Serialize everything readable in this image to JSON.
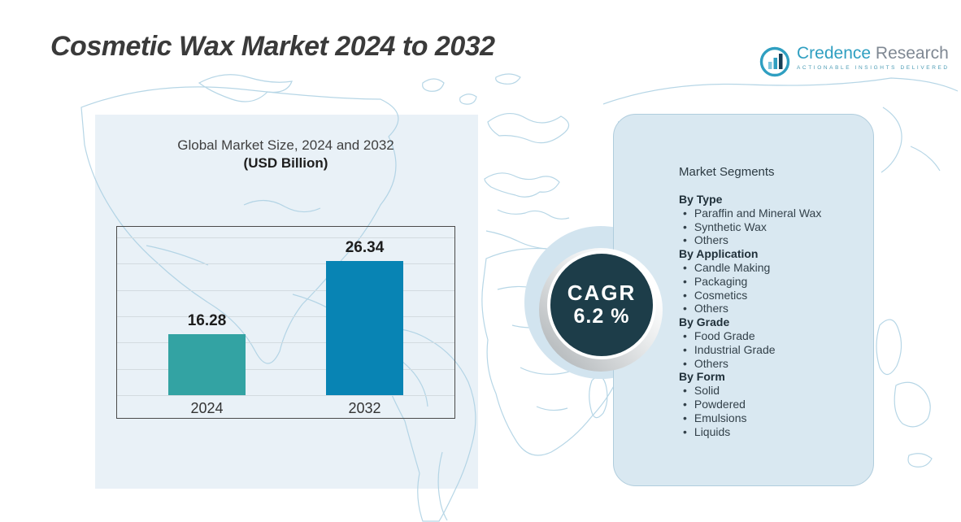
{
  "title": "Cosmetic Wax Market 2024 to 2032",
  "logo": {
    "name_primary": "Credence",
    "name_secondary": "Research",
    "tagline": "Actionable Insights Delivered"
  },
  "chart_heading": {
    "line1": "Global Market Size, 2024 and 2032",
    "line2": "(USD Billion)"
  },
  "chart_data": {
    "type": "bar",
    "categories": [
      "2024",
      "2032"
    ],
    "values": [
      16.28,
      26.34
    ],
    "title": "Global Market Size, 2024 and 2032 (USD Billion)",
    "xlabel": "",
    "ylabel": "USD Billion",
    "ylim": [
      8,
      31
    ],
    "grid": true,
    "gridline_count": 7,
    "legend": false,
    "bar_colors": [
      "#33a3a3",
      "#0884b4"
    ]
  },
  "cagr": {
    "label": "CAGR",
    "value": "6.2 %"
  },
  "segments": {
    "title": "Market Segments",
    "groups": [
      {
        "label": "By Type",
        "items": [
          "Paraffin and Mineral Wax",
          "Synthetic Wax",
          "Others"
        ]
      },
      {
        "label": "By Application",
        "items": [
          "Candle Making",
          "Packaging",
          "Cosmetics",
          "Others"
        ]
      },
      {
        "label": "By Grade",
        "items": [
          "Food Grade",
          "Industrial Grade",
          "Others"
        ]
      },
      {
        "label": "By Form",
        "items": [
          "Solid",
          "Powdered",
          "Emulsions",
          "Liquids"
        ]
      }
    ]
  },
  "colors": {
    "bar_2024": "#33a3a3",
    "bar_2032": "#0884b4",
    "cagr_circle": "#1d3d49",
    "panel_bg": "#d9e8f1",
    "background_tint": "#e9f1f7",
    "map_line": "#aacfe2",
    "logo_teal": "#2f9fc1",
    "logo_gray": "#7f8893"
  }
}
